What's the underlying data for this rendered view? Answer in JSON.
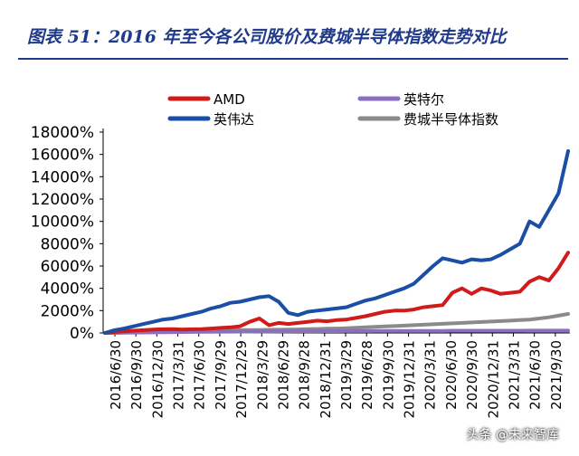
{
  "header": {
    "title": "图表 51：2016 年至今各公司股价及费城半导体指数走势对比"
  },
  "watermark": "头条 @未来智库",
  "colors": {
    "title": "#1f3a8a",
    "amd": "#d11a1a",
    "nvidia": "#1a4fa5",
    "intel": "#8a6fbf",
    "sox": "#8a8a8a"
  },
  "chart_data": {
    "type": "line",
    "title": "",
    "xlabel": "",
    "ylabel": "",
    "ylim": [
      0,
      18000
    ],
    "y_tick_format": "percent",
    "yticks": [
      "0%",
      "2000%",
      "4000%",
      "6000%",
      "8000%",
      "10000%",
      "12000%",
      "14000%",
      "16000%",
      "18000%"
    ],
    "x_tick_labels": [
      "2016/6/30",
      "2016/9/30",
      "2016/12/30",
      "2017/3/31",
      "2017/6/30",
      "2017/9/29",
      "2017/12/29",
      "2018/3/29",
      "2018/6/29",
      "2018/9/28",
      "2018/12/31",
      "2019/3/29",
      "2019/6/28",
      "2019/9/30",
      "2019/12/31",
      "2020/3/31",
      "2020/6/30",
      "2020/9/30",
      "2020/12/31",
      "2021/3/31",
      "2021/6/30",
      "2021/9/30"
    ],
    "legend_position": "top",
    "grid": false,
    "series": [
      {
        "name": "AMD",
        "color": "#d11a1a",
        "values": [
          0,
          80,
          150,
          200,
          250,
          300,
          330,
          350,
          300,
          330,
          350,
          400,
          450,
          500,
          600,
          1000,
          1300,
          700,
          900,
          800,
          900,
          1000,
          1100,
          1050,
          1150,
          1200,
          1350,
          1500,
          1700,
          1900,
          2000,
          2000,
          2100,
          2300,
          2400,
          2500,
          3600,
          4000,
          3500,
          4000,
          3800,
          3500,
          3600,
          3700,
          4600,
          5000,
          4700,
          5800,
          7200
        ]
      },
      {
        "name": "英特尔",
        "color": "#8a6fbf",
        "values": [
          0,
          10,
          20,
          30,
          40,
          50,
          60,
          70,
          80,
          90,
          100,
          100,
          110,
          110,
          120,
          120,
          130,
          130,
          140,
          140,
          150,
          150,
          150,
          160,
          160,
          170,
          170,
          170,
          180,
          180,
          180,
          180,
          190,
          190,
          190,
          190,
          200,
          200,
          200,
          200,
          200,
          200,
          200,
          200,
          210,
          210,
          210,
          210,
          210
        ]
      },
      {
        "name": "英伟达",
        "color": "#1a4fa5",
        "values": [
          0,
          250,
          400,
          600,
          800,
          1000,
          1200,
          1300,
          1500,
          1700,
          1900,
          2200,
          2400,
          2700,
          2800,
          3000,
          3200,
          3300,
          2800,
          1800,
          1600,
          1900,
          2000,
          2100,
          2200,
          2300,
          2600,
          2900,
          3100,
          3400,
          3700,
          4000,
          4400,
          5200,
          6000,
          6700,
          6500,
          6300,
          6600,
          6500,
          6600,
          7000,
          7500,
          8000,
          10000,
          9500,
          11000,
          12500,
          16300
        ]
      },
      {
        "name": "费城半导体指数",
        "color": "#8a8a8a",
        "values": [
          0,
          20,
          40,
          60,
          80,
          100,
          120,
          140,
          160,
          180,
          200,
          220,
          230,
          240,
          250,
          260,
          270,
          280,
          290,
          300,
          320,
          340,
          360,
          380,
          400,
          420,
          460,
          500,
          540,
          580,
          620,
          660,
          700,
          740,
          780,
          820,
          860,
          900,
          940,
          980,
          1020,
          1060,
          1100,
          1150,
          1200,
          1300,
          1400,
          1550,
          1700
        ]
      }
    ]
  }
}
